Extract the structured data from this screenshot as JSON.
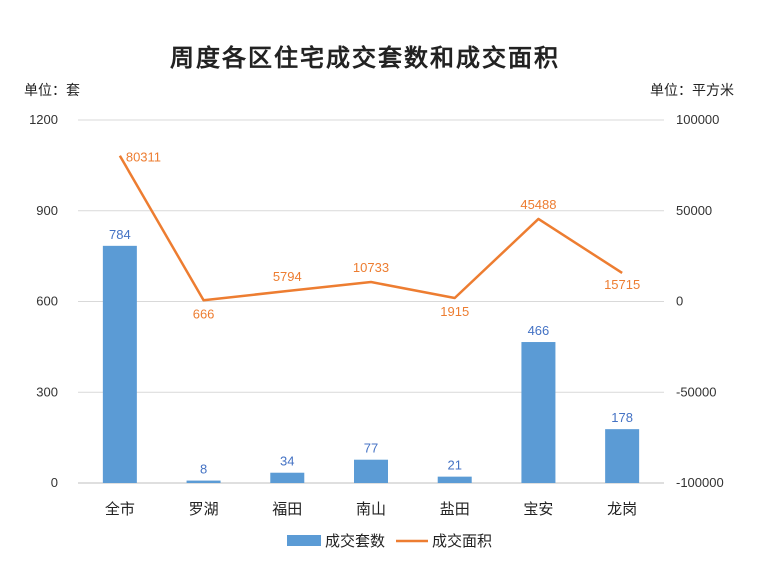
{
  "chart_data": {
    "type": "bar",
    "title": "周度各区住宅成交套数和成交面积",
    "left_unit": "单位：套",
    "right_unit": "单位：平方米",
    "categories": [
      "全市",
      "罗湖",
      "福田",
      "南山",
      "盐田",
      "宝安",
      "龙岗"
    ],
    "series": [
      {
        "name": "成交套数",
        "type": "bar",
        "axis": "left",
        "color": "#5b9bd5",
        "label_color": "#4472c4",
        "values": [
          784,
          8,
          34,
          77,
          21,
          466,
          178
        ]
      },
      {
        "name": "成交面积",
        "type": "line",
        "axis": "right",
        "color": "#ed7d31",
        "values": [
          80311,
          666,
          5794,
          10733,
          1915,
          45488,
          15715
        ]
      }
    ],
    "y_left": {
      "min": 0,
      "max": 1200,
      "ticks": [
        0,
        300,
        600,
        900,
        1200
      ]
    },
    "y_right": {
      "min": -100000,
      "max": 100000,
      "ticks": [
        -100000,
        -50000,
        0,
        50000,
        100000
      ]
    },
    "grid": true,
    "legend": "bottom"
  }
}
